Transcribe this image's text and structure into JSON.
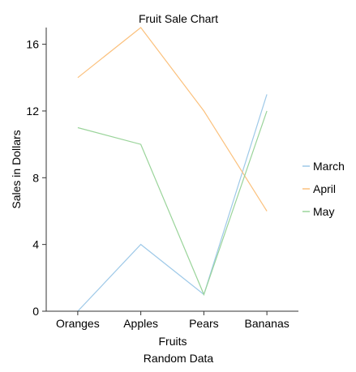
{
  "chart_data": {
    "type": "line",
    "title": "Fruit Sale Chart",
    "xlabel": "Fruits",
    "ylabel": "Sales in Dollars",
    "caption": "Random Data",
    "categories": [
      "Oranges",
      "Apples",
      "Pears",
      "Bananas"
    ],
    "ylim": [
      0,
      17
    ],
    "yticks": [
      0,
      4,
      8,
      12,
      16
    ],
    "grid": false,
    "legend_position": "right",
    "series": [
      {
        "name": "March",
        "color": "#9ec9e8",
        "values": [
          0,
          4,
          1,
          13
        ]
      },
      {
        "name": "April",
        "color": "#fbc17d",
        "values": [
          14,
          17,
          12,
          6
        ]
      },
      {
        "name": "May",
        "color": "#9ad49a",
        "values": [
          11,
          10,
          1,
          12
        ]
      }
    ]
  }
}
